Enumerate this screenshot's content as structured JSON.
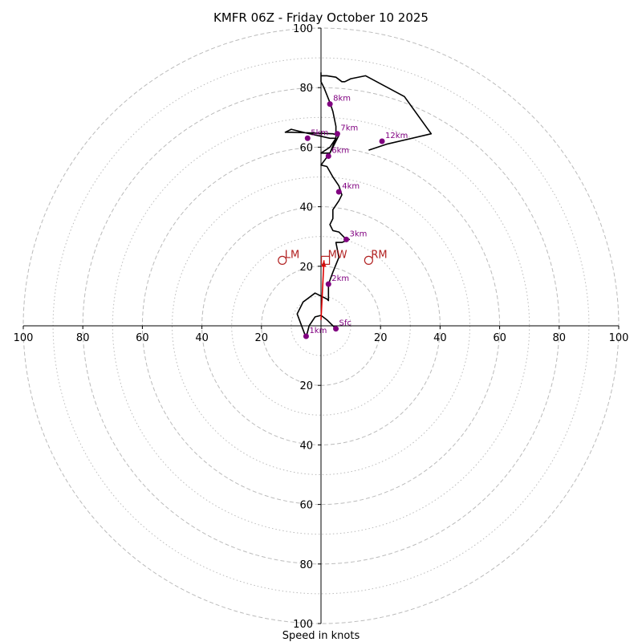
{
  "chart_data": {
    "type": "hodograph",
    "title": "KMFR 06Z - Friday October 10 2025",
    "xlabel": "Speed in knots",
    "range": [
      -100,
      100
    ],
    "ring_major": [
      20,
      40,
      60,
      80,
      100
    ],
    "ring_minor": [
      10,
      30,
      50,
      70,
      90
    ],
    "axis_labels": {
      "top": [
        "20",
        "40",
        "60",
        "80",
        "100"
      ],
      "bottom": [
        "20",
        "40",
        "60",
        "80",
        "100"
      ],
      "left": [
        "20",
        "40",
        "60",
        "80",
        "100"
      ],
      "right": [
        "20",
        "40",
        "60",
        "80",
        "100"
      ]
    },
    "colors": {
      "grid": "#bbbbbb",
      "trace": "#000000",
      "levels": "#800080",
      "storm": "#b22222",
      "shear": "#dd0000"
    },
    "trace": [
      [
        5,
        -1
      ],
      [
        2,
        2
      ],
      [
        0,
        3.5
      ],
      [
        -2,
        3
      ],
      [
        -4,
        0
      ],
      [
        -5,
        -4
      ],
      [
        -8,
        4
      ],
      [
        -6,
        8
      ],
      [
        -2,
        11
      ],
      [
        2,
        9
      ],
      [
        2.5,
        8.5
      ],
      [
        2.5,
        11
      ],
      [
        2.5,
        14
      ],
      [
        4,
        18
      ],
      [
        6,
        23
      ],
      [
        5,
        28
      ],
      [
        7,
        28
      ],
      [
        9.5,
        29
      ],
      [
        8,
        29.5
      ],
      [
        6,
        31.5
      ],
      [
        4,
        32
      ],
      [
        3,
        34
      ],
      [
        4,
        36
      ],
      [
        4,
        39
      ],
      [
        6,
        42
      ],
      [
        7,
        44
      ],
      [
        6,
        47
      ],
      [
        4,
        50
      ],
      [
        2,
        53.5
      ],
      [
        0,
        54
      ],
      [
        3,
        58
      ],
      [
        5,
        62
      ],
      [
        6,
        64
      ],
      [
        4,
        64.5
      ],
      [
        -10,
        65
      ],
      [
        -12,
        65
      ],
      [
        -10,
        66
      ],
      [
        -6,
        65
      ],
      [
        3,
        63
      ],
      [
        5,
        63
      ],
      [
        3,
        60
      ],
      [
        0,
        58
      ],
      [
        3,
        58
      ],
      [
        5,
        63
      ],
      [
        5,
        64
      ],
      [
        5,
        67
      ],
      [
        4,
        72
      ],
      [
        3,
        75
      ],
      [
        1,
        80
      ],
      [
        0,
        82
      ],
      [
        0,
        85
      ],
      [
        0,
        84
      ],
      [
        2,
        84
      ],
      [
        5,
        83.5
      ],
      [
        7,
        82
      ],
      [
        8,
        82
      ],
      [
        10,
        83
      ],
      [
        15,
        84
      ],
      [
        28,
        77
      ],
      [
        37,
        64.5
      ],
      [
        22,
        61
      ],
      [
        16,
        59
      ]
    ],
    "levels": [
      {
        "label": "Sfc",
        "u": 5,
        "v": -1
      },
      {
        "label": "1km",
        "u": -5,
        "v": -3.5
      },
      {
        "label": "2km",
        "u": 2.5,
        "v": 14
      },
      {
        "label": "3km",
        "u": 8.5,
        "v": 29
      },
      {
        "label": "4km",
        "u": 6,
        "v": 45
      },
      {
        "label": "5km",
        "u": -4.5,
        "v": 63
      },
      {
        "label": "6km",
        "u": 2.5,
        "v": 57
      },
      {
        "label": "7km",
        "u": 5.5,
        "v": 64.5
      },
      {
        "label": "8km",
        "u": 3,
        "v": 74.5
      },
      {
        "label": "12km",
        "u": 20.5,
        "v": 62
      }
    ],
    "storm_motion": [
      {
        "label": "LM",
        "u": -13,
        "v": 22,
        "marker": "circle"
      },
      {
        "label": "RM",
        "u": 16,
        "v": 22,
        "marker": "circle"
      },
      {
        "label": "MW",
        "u": 1.5,
        "v": 22,
        "marker": "square"
      }
    ],
    "shear_vector": {
      "from": [
        0,
        2
      ],
      "to": [
        1,
        22
      ]
    }
  }
}
